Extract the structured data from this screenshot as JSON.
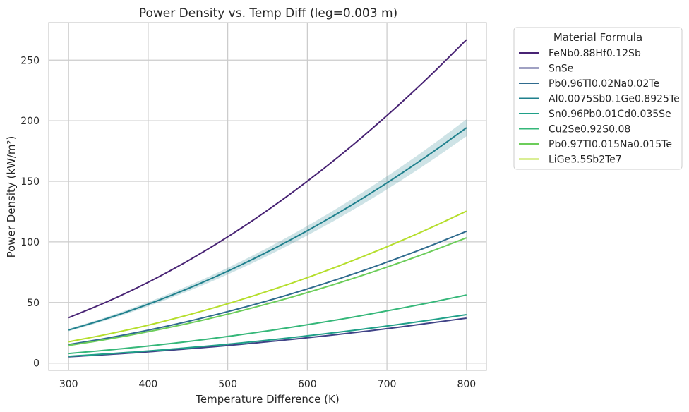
{
  "chart_data": {
    "type": "line",
    "title": "Power Density vs. Temp Diff (leg=0.003 m)",
    "xlabel": "Temperature Difference (K)",
    "ylabel": "Power Density (kW/m²)",
    "xlim": [
      275,
      825
    ],
    "ylim": [
      -6,
      281
    ],
    "xticks": [
      300,
      400,
      500,
      600,
      700,
      800
    ],
    "yticks": [
      0,
      50,
      100,
      150,
      200,
      250
    ],
    "grid": true,
    "legend": {
      "title": "Material Formula",
      "placement": "outside right, top"
    },
    "x": [
      300,
      350,
      400,
      450,
      500,
      550,
      600,
      650,
      700,
      750,
      800
    ],
    "series": [
      {
        "name": "FeNb0.88Hf0.12Sb",
        "color": "#482374",
        "values": [
          37.5,
          51.1,
          66.7,
          84.4,
          104.2,
          126.1,
          150.1,
          176.1,
          204.3,
          234.5,
          266.9
        ]
      },
      {
        "name": "SnSe",
        "color": "#404387",
        "values": [
          5.2,
          7.1,
          9.3,
          11.8,
          14.5,
          17.6,
          20.9,
          24.5,
          28.4,
          32.7,
          37.1
        ]
      },
      {
        "name": "Pb0.96Tl0.02Na0.02Te",
        "color": "#2f6b8e",
        "values": [
          15.3,
          20.8,
          27.2,
          34.4,
          42.5,
          51.4,
          61.2,
          71.8,
          83.3,
          95.6,
          108.8
        ]
      },
      {
        "name": "Al0.0075Sb0.1Ge0.8925Te",
        "color": "#1f808d",
        "band": 7,
        "values": [
          27.3,
          37.2,
          48.6,
          61.5,
          75.9,
          91.8,
          109.3,
          128.2,
          148.7,
          170.7,
          194.2
        ]
      },
      {
        "name": "Sn0.96Pb0.01Cd0.035Se",
        "color": "#1fa088",
        "values": [
          5.6,
          7.7,
          10.0,
          12.7,
          15.6,
          18.9,
          22.5,
          26.4,
          30.6,
          35.1,
          40.0
        ]
      },
      {
        "name": "Cu2Se0.92S0.08",
        "color": "#35b779",
        "values": [
          7.9,
          10.8,
          14.1,
          17.8,
          22.0,
          26.6,
          31.7,
          37.1,
          43.1,
          49.4,
          56.2
        ]
      },
      {
        "name": "Pb0.97Tl0.015Na0.015Te",
        "color": "#6ccd5a",
        "values": [
          14.5,
          19.8,
          25.9,
          32.7,
          40.4,
          48.9,
          58.2,
          68.3,
          79.2,
          90.9,
          103.4
        ]
      },
      {
        "name": "LiGe3.5Sb2Te7",
        "color": "#b5de2b",
        "values": [
          17.6,
          24.0,
          31.3,
          39.7,
          49.0,
          59.3,
          70.5,
          82.8,
          96.0,
          110.2,
          125.4
        ]
      }
    ]
  }
}
